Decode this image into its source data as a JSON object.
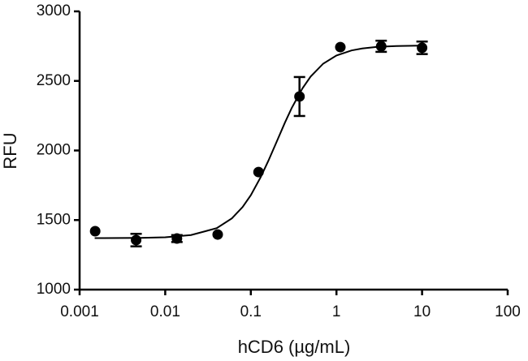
{
  "chart_data": {
    "type": "scatter",
    "xlabel": "hCD6 (µg/mL)",
    "ylabel": "RFU",
    "xscale": "log",
    "color": "#000000",
    "xlim": [
      0.001,
      100
    ],
    "xticks": [
      0.001,
      0.01,
      0.1,
      1,
      10,
      100
    ],
    "ylim": [
      1000,
      3000
    ],
    "yticks": [
      1000,
      1500,
      2000,
      2500,
      3000
    ],
    "points": {
      "x": [
        0.00152,
        0.00457,
        0.0137,
        0.041,
        0.123,
        0.37,
        1.11,
        3.33,
        10
      ],
      "values": [
        1420,
        1356,
        1367,
        1396,
        1845,
        2388,
        2743,
        2749,
        2738
      ],
      "errors": [
        null,
        45,
        25,
        null,
        null,
        140,
        null,
        40,
        45
      ]
    },
    "fit": {
      "x": [
        0.0015,
        0.005,
        0.01,
        0.02,
        0.04,
        0.06,
        0.08,
        0.1,
        0.13,
        0.16,
        0.2,
        0.25,
        0.3,
        0.4,
        0.5,
        0.7,
        1,
        1.5,
        2,
        3,
        5,
        10
      ],
      "values": [
        1370,
        1372,
        1376,
        1392,
        1442,
        1512,
        1593,
        1679,
        1807,
        1925,
        2062,
        2200,
        2305,
        2446,
        2532,
        2624,
        2683,
        2719,
        2733,
        2745,
        2751,
        2754
      ]
    }
  }
}
